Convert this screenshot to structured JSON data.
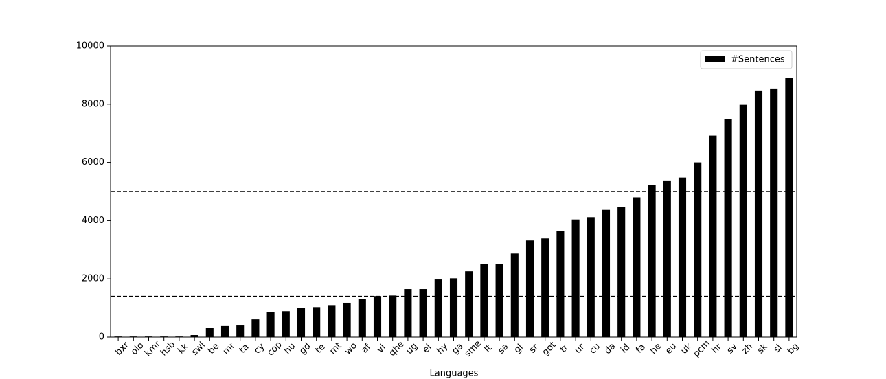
{
  "chart_data": {
    "type": "bar",
    "x_label": "Languages",
    "categories": [
      "bxr",
      "olo",
      "kmr",
      "hsb",
      "kk",
      "swl",
      "be",
      "mr",
      "ta",
      "cy",
      "cop",
      "hu",
      "gd",
      "te",
      "mt",
      "wo",
      "af",
      "vi",
      "qhe",
      "ug",
      "el",
      "hy",
      "ga",
      "sme",
      "lt",
      "sa",
      "gl",
      "sr",
      "got",
      "tr",
      "ur",
      "cu",
      "da",
      "id",
      "fa",
      "he",
      "eu",
      "uk",
      "pcm",
      "hr",
      "sv",
      "zh",
      "sk",
      "sl",
      "bg"
    ],
    "series": [
      {
        "name": "#Sentences",
        "color": "#000000",
        "values": [
          20,
          20,
          20,
          20,
          20,
          70,
          310,
          380,
          400,
          610,
          870,
          890,
          1010,
          1030,
          1100,
          1180,
          1320,
          1410,
          1430,
          1650,
          1650,
          1980,
          2020,
          2260,
          2500,
          2520,
          2870,
          3320,
          3390,
          3650,
          4040,
          4120,
          4370,
          4470,
          4800,
          5220,
          5380,
          5480,
          6000,
          6920,
          7490,
          7980,
          8470,
          8540,
          8900
        ]
      }
    ],
    "ylim": [
      0,
      10000
    ],
    "yticks": [
      0,
      2000,
      4000,
      6000,
      8000,
      10000
    ],
    "hlines": [
      1400,
      5000
    ],
    "legend": "upper right",
    "grid": false
  }
}
